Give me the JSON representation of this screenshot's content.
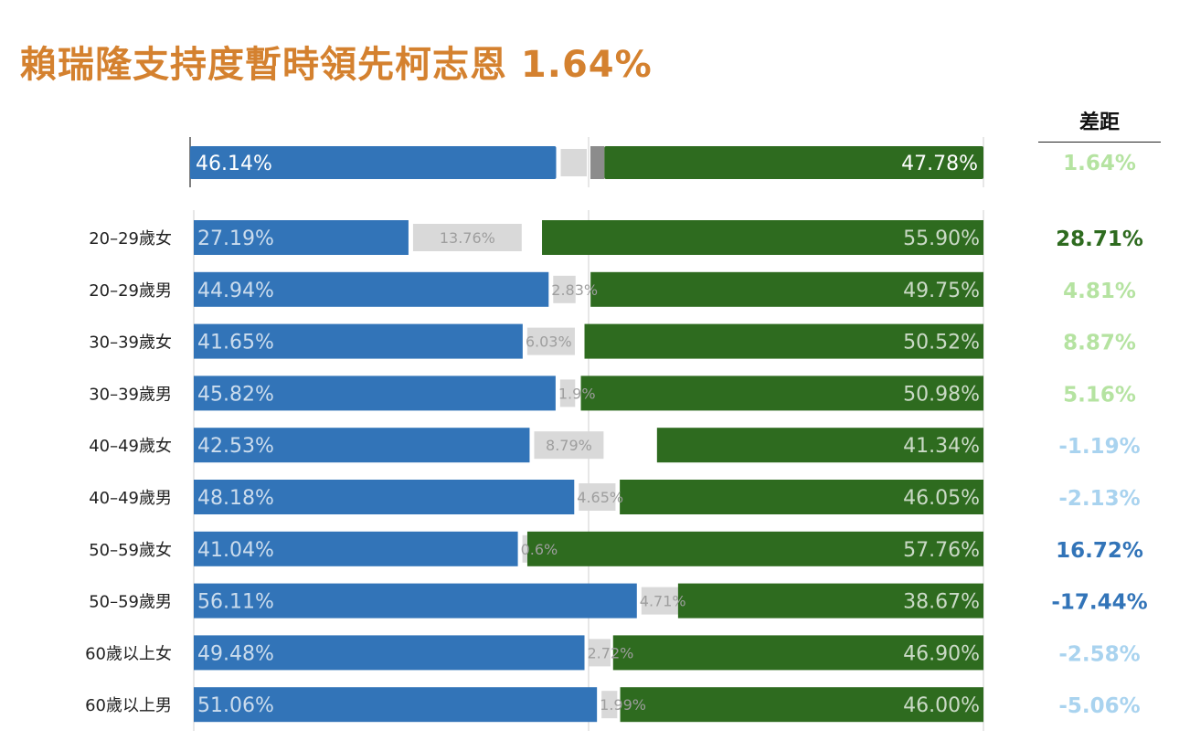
{
  "title": "賴瑞隆支持度暫時領先柯志恩 1.64%",
  "diff_header": "差距",
  "colors": {
    "title": "#d4812f",
    "left_bar": "#3274b8",
    "right_bar": "#2e6b1f",
    "middle_bar": "#d9d9d9",
    "middle_bar_total": "#8c8c8c",
    "diff_light_green": "#b5e3a1",
    "diff_dark_green": "#2e6b1f",
    "diff_light_blue": "#a9d3ef",
    "diff_dark_blue": "#3274b8"
  },
  "chart_data": {
    "type": "bar",
    "title": "賴瑞隆支持度暫時領先柯志恩 1.64%",
    "total": {
      "left": 46.14,
      "left_label": "46.14%",
      "right": 47.78,
      "right_label": "47.78%",
      "diff": 1.64,
      "diff_label": "1.64%",
      "diff_color": "light-green"
    },
    "rows": [
      {
        "category": "20–29歲女",
        "left": 27.19,
        "left_label": "27.19%",
        "middle": 13.76,
        "middle_label": "13.76%",
        "right": 55.9,
        "right_label": "55.90%",
        "diff": 28.71,
        "diff_label": "28.71%",
        "diff_color": "dark-green"
      },
      {
        "category": "20–29歲男",
        "left": 44.94,
        "left_label": "44.94%",
        "middle": 2.83,
        "middle_label": "2.83%",
        "right": 49.75,
        "right_label": "49.75%",
        "diff": 4.81,
        "diff_label": "4.81%",
        "diff_color": "light-green"
      },
      {
        "category": "30–39歲女",
        "left": 41.65,
        "left_label": "41.65%",
        "middle": 6.03,
        "middle_label": "6.03%",
        "right": 50.52,
        "right_label": "50.52%",
        "diff": 8.87,
        "diff_label": "8.87%",
        "diff_color": "light-green"
      },
      {
        "category": "30–39歲男",
        "left": 45.82,
        "left_label": "45.82%",
        "middle": 1.9,
        "middle_label": "1.9%",
        "right": 50.98,
        "right_label": "50.98%",
        "diff": 5.16,
        "diff_label": "5.16%",
        "diff_color": "light-green"
      },
      {
        "category": "40–49歲女",
        "left": 42.53,
        "left_label": "42.53%",
        "middle": 8.79,
        "middle_label": "8.79%",
        "right": 41.34,
        "right_label": "41.34%",
        "diff": -1.19,
        "diff_label": "-1.19%",
        "diff_color": "light-blue"
      },
      {
        "category": "40–49歲男",
        "left": 48.18,
        "left_label": "48.18%",
        "middle": 4.65,
        "middle_label": "4.65%",
        "right": 46.05,
        "right_label": "46.05%",
        "diff": -2.13,
        "diff_label": "-2.13%",
        "diff_color": "light-blue"
      },
      {
        "category": "50–59歲女",
        "left": 41.04,
        "left_label": "41.04%",
        "middle": 0.6,
        "middle_label": "0.6%",
        "right": 57.76,
        "right_label": "57.76%",
        "diff": 16.72,
        "diff_label": "16.72%",
        "diff_color": "dark-blue"
      },
      {
        "category": "50–59歲男",
        "left": 56.11,
        "left_label": "56.11%",
        "middle": 4.71,
        "middle_label": "4.71%",
        "right": 38.67,
        "right_label": "38.67%",
        "diff": -17.44,
        "diff_label": "-17.44%",
        "diff_color": "dark-blue"
      },
      {
        "category": "60歲以上女",
        "left": 49.48,
        "left_label": "49.48%",
        "middle": 2.72,
        "middle_label": "2.72%",
        "right": 46.9,
        "right_label": "46.90%",
        "diff": -2.58,
        "diff_label": "-2.58%",
        "diff_color": "light-blue"
      },
      {
        "category": "60歲以上男",
        "left": 51.06,
        "left_label": "51.06%",
        "middle": 1.99,
        "middle_label": "1.99%",
        "right": 46.0,
        "right_label": "46.00%",
        "diff": -5.06,
        "diff_label": "-5.06%",
        "diff_color": "light-blue"
      }
    ],
    "grid": true,
    "legend": "none"
  }
}
